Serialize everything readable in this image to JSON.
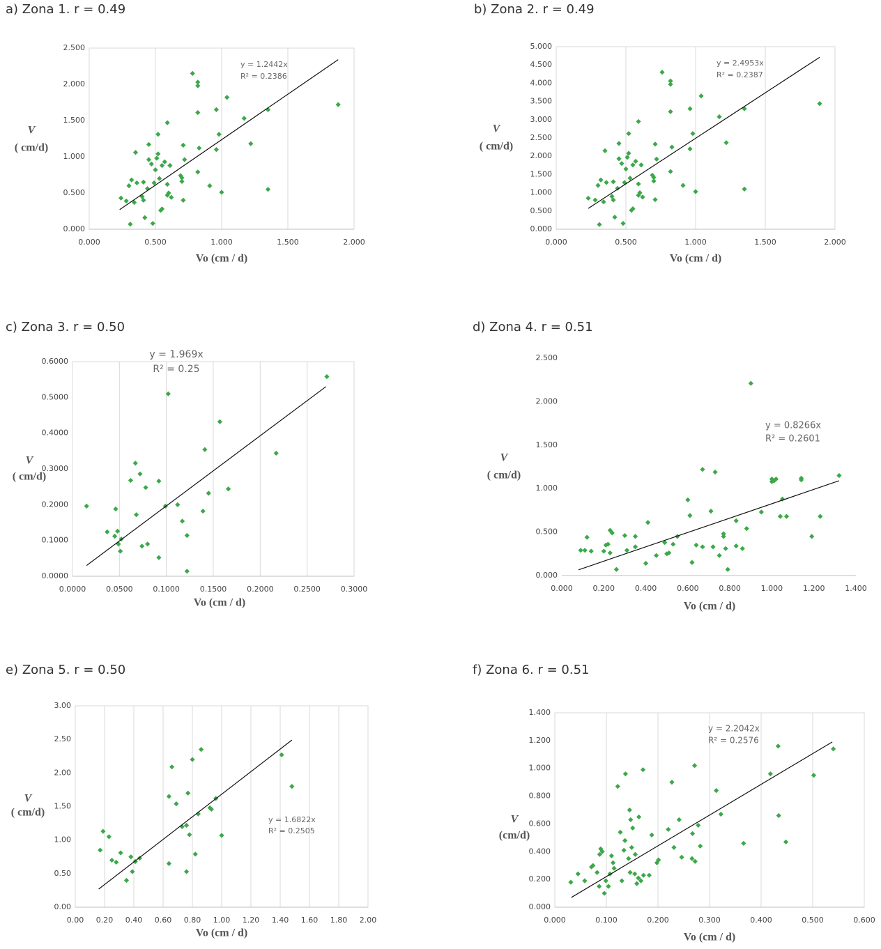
{
  "chart_data": [
    {
      "type": "scatter",
      "title": "a) Zona 1. r = 0.49",
      "x_label": "Vo (cm / d)",
      "y_label": [
        "V",
        "( cm/d)"
      ],
      "annotations": [
        "y = 1.2442x",
        "R² = 0.2386"
      ],
      "color": "#3ca84a",
      "grid": "x",
      "xlim": [
        0,
        2
      ],
      "ylim": [
        0,
        2.5
      ],
      "xticks": [
        {
          "value": 0,
          "label": "0.000"
        },
        {
          "value": 0.5,
          "label": "0.500"
        },
        {
          "value": 1,
          "label": "1.000"
        },
        {
          "value": 1.5,
          "label": "1.500"
        },
        {
          "value": 2,
          "label": "2.000"
        }
      ],
      "yticks": [
        {
          "value": 0,
          "label": "0.000"
        },
        {
          "value": 0.5,
          "label": "0.500"
        },
        {
          "value": 1,
          "label": "1.000"
        },
        {
          "value": 1.5,
          "label": "1.500"
        },
        {
          "value": 2,
          "label": "2.000"
        },
        {
          "value": 2.5,
          "label": "2.500"
        }
      ],
      "x": [
        0.24,
        0.28,
        0.3,
        0.31,
        0.32,
        0.34,
        0.35,
        0.36,
        0.4,
        0.41,
        0.41,
        0.42,
        0.44,
        0.45,
        0.45,
        0.47,
        0.48,
        0.49,
        0.5,
        0.51,
        0.52,
        0.52,
        0.53,
        0.54,
        0.55,
        0.55,
        0.57,
        0.59,
        0.59,
        0.59,
        0.6,
        0.61,
        0.62,
        0.69,
        0.7,
        0.7,
        0.71,
        0.71,
        0.72,
        0.78,
        0.82,
        0.82,
        0.82,
        0.82,
        0.83,
        0.91,
        0.96,
        0.96,
        0.98,
        1.0,
        1.04,
        1.17,
        1.22,
        1.35,
        1.35,
        1.88
      ],
      "values": [
        0.43,
        0.39,
        0.6,
        0.07,
        0.68,
        0.37,
        1.06,
        0.64,
        0.45,
        0.4,
        0.65,
        0.16,
        0.56,
        1.17,
        0.96,
        0.9,
        0.08,
        0.64,
        0.82,
        0.98,
        1.31,
        1.04,
        0.7,
        0.26,
        0.28,
        0.88,
        0.93,
        1.47,
        0.62,
        0.47,
        0.5,
        0.88,
        0.44,
        0.74,
        0.66,
        0.71,
        1.16,
        0.4,
        0.96,
        2.15,
        1.98,
        2.03,
        1.61,
        0.79,
        1.12,
        0.6,
        1.1,
        1.65,
        1.31,
        0.51,
        1.82,
        1.53,
        1.18,
        0.55,
        1.65,
        1.72
      ],
      "trendline": {
        "x": [
          0.23,
          1.88
        ],
        "values": [
          0.27,
          2.34
        ]
      }
    },
    {
      "type": "scatter",
      "title": "b) Zona 2. r = 0.49",
      "x_label": "Vo (cm / d)",
      "y_label": [
        "V",
        "( cm/d)"
      ],
      "annotations": [
        "y = 2.4953x",
        "R² = 0.2387"
      ],
      "color": "#3ca84a",
      "grid": "x",
      "xlim": [
        0,
        2
      ],
      "ylim": [
        0,
        5
      ],
      "xticks": [
        {
          "value": 0,
          "label": "0.000"
        },
        {
          "value": 0.5,
          "label": "0.500"
        },
        {
          "value": 1,
          "label": "1.000"
        },
        {
          "value": 1.5,
          "label": "1.500"
        },
        {
          "value": 2,
          "label": "2.000"
        }
      ],
      "yticks": [
        {
          "value": 0,
          "label": "0.000"
        },
        {
          "value": 0.5,
          "label": "0.500"
        },
        {
          "value": 1,
          "label": "1.000"
        },
        {
          "value": 1.5,
          "label": "1.500"
        },
        {
          "value": 2,
          "label": "2.000"
        },
        {
          "value": 2.5,
          "label": "2.500"
        },
        {
          "value": 3,
          "label": "3.000"
        },
        {
          "value": 3.5,
          "label": "3.500"
        },
        {
          "value": 4,
          "label": "4.000"
        },
        {
          "value": 4.5,
          "label": "4.500"
        },
        {
          "value": 5,
          "label": "5.000"
        }
      ],
      "x": [
        0.23,
        0.28,
        0.3,
        0.31,
        0.32,
        0.34,
        0.35,
        0.36,
        0.4,
        0.41,
        0.41,
        0.42,
        0.44,
        0.45,
        0.45,
        0.47,
        0.48,
        0.49,
        0.5,
        0.51,
        0.52,
        0.52,
        0.53,
        0.54,
        0.55,
        0.55,
        0.57,
        0.59,
        0.59,
        0.59,
        0.6,
        0.61,
        0.62,
        0.69,
        0.7,
        0.7,
        0.71,
        0.71,
        0.72,
        0.76,
        0.82,
        0.82,
        0.82,
        0.82,
        0.83,
        0.91,
        0.96,
        0.96,
        0.98,
        1.0,
        1.04,
        1.17,
        1.22,
        1.35,
        1.35,
        1.89
      ],
      "values": [
        0.85,
        0.8,
        1.2,
        0.13,
        1.35,
        0.75,
        2.15,
        1.28,
        0.9,
        0.8,
        1.3,
        0.33,
        1.12,
        2.35,
        1.93,
        1.8,
        0.16,
        1.28,
        1.65,
        1.97,
        2.62,
        2.08,
        1.4,
        0.52,
        0.56,
        1.76,
        1.86,
        2.95,
        1.24,
        0.93,
        1.0,
        1.76,
        0.88,
        1.48,
        1.32,
        1.42,
        2.33,
        0.81,
        1.92,
        4.3,
        3.97,
        4.06,
        3.22,
        1.58,
        2.25,
        1.2,
        2.2,
        3.3,
        2.62,
        1.03,
        3.65,
        3.08,
        2.37,
        1.1,
        3.3,
        3.44
      ],
      "trendline": {
        "x": [
          0.23,
          1.89
        ],
        "values": [
          0.57,
          4.71
        ]
      }
    },
    {
      "type": "scatter",
      "title": "c) Zona 3. r = 0.50",
      "x_label": "Vo (cm / d)",
      "y_label": [
        "V",
        "( cm/d)"
      ],
      "annotations": [
        "y = 1.969x",
        "R² = 0.25"
      ],
      "color": "#3ca84a",
      "grid": "x",
      "xlim": [
        0,
        0.3
      ],
      "ylim": [
        0,
        0.6
      ],
      "xticks": [
        {
          "value": 0,
          "label": "0.0000"
        },
        {
          "value": 0.05,
          "label": "0.0500"
        },
        {
          "value": 0.1,
          "label": "0.1000"
        },
        {
          "value": 0.15,
          "label": "0.1500"
        },
        {
          "value": 0.2,
          "label": "0.2000"
        },
        {
          "value": 0.25,
          "label": "0.2500"
        },
        {
          "value": 0.3,
          "label": "0.3000"
        }
      ],
      "yticks": [
        {
          "value": 0,
          "label": "0.0000"
        },
        {
          "value": 0.1,
          "label": "0.1000"
        },
        {
          "value": 0.2,
          "label": "0.2000"
        },
        {
          "value": 0.3,
          "label": "0.3000"
        },
        {
          "value": 0.4,
          "label": "0.4000"
        },
        {
          "value": 0.5,
          "label": "0.5000"
        },
        {
          "value": 0.6,
          "label": "0.6000"
        }
      ],
      "x": [
        0.015,
        0.037,
        0.045,
        0.046,
        0.048,
        0.049,
        0.051,
        0.052,
        0.062,
        0.067,
        0.068,
        0.072,
        0.074,
        0.078,
        0.08,
        0.092,
        0.092,
        0.099,
        0.102,
        0.112,
        0.117,
        0.122,
        0.122,
        0.139,
        0.141,
        0.145,
        0.157,
        0.166,
        0.217,
        0.271
      ],
      "values": [
        0.196,
        0.124,
        0.112,
        0.188,
        0.126,
        0.09,
        0.07,
        0.104,
        0.268,
        0.316,
        0.172,
        0.286,
        0.084,
        0.248,
        0.09,
        0.266,
        0.052,
        0.196,
        0.51,
        0.2,
        0.154,
        0.114,
        0.014,
        0.182,
        0.354,
        0.232,
        0.432,
        0.244,
        0.344,
        0.558
      ],
      "trendline": {
        "x": [
          0.015,
          0.27
        ],
        "values": [
          0.03,
          0.53
        ]
      }
    },
    {
      "type": "scatter",
      "title": "d) Zona 4. r = 0.51",
      "x_label": "Vo (cm / d)",
      "y_label": [
        "V",
        "( cm/d)"
      ],
      "annotations": [
        "y = 0.8266x",
        "R² = 0.2601"
      ],
      "color": "#3ca84a",
      "grid": false,
      "xlim": [
        0,
        1.4
      ],
      "ylim": [
        0,
        2.5
      ],
      "xticks": [
        {
          "value": 0,
          "label": "0.000"
        },
        {
          "value": 0.2,
          "label": "0.200"
        },
        {
          "value": 0.4,
          "label": "0.400"
        },
        {
          "value": 0.6,
          "label": "0.600"
        },
        {
          "value": 0.8,
          "label": "0.800"
        },
        {
          "value": 1,
          "label": "1.000"
        },
        {
          "value": 1.2,
          "label": "1.200"
        },
        {
          "value": 1.4,
          "label": "1.400"
        }
      ],
      "yticks": [
        {
          "value": 0,
          "label": "0.000"
        },
        {
          "value": 0.5,
          "label": "0.500"
        },
        {
          "value": 1,
          "label": "1.000"
        },
        {
          "value": 1.5,
          "label": "1.500"
        },
        {
          "value": 2,
          "label": "2.000"
        },
        {
          "value": 2.5,
          "label": "2.500"
        }
      ],
      "x": [
        0.09,
        0.11,
        0.12,
        0.14,
        0.2,
        0.21,
        0.22,
        0.23,
        0.23,
        0.24,
        0.26,
        0.3,
        0.31,
        0.35,
        0.35,
        0.4,
        0.41,
        0.45,
        0.49,
        0.5,
        0.51,
        0.53,
        0.55,
        0.6,
        0.61,
        0.62,
        0.64,
        0.67,
        0.67,
        0.71,
        0.72,
        0.73,
        0.75,
        0.77,
        0.77,
        0.78,
        0.79,
        0.83,
        0.83,
        0.86,
        0.88,
        0.9,
        0.95,
        1.0,
        1.0,
        1.01,
        1.02,
        1.04,
        1.05,
        1.07,
        1.14,
        1.14,
        1.19,
        1.23,
        1.32
      ],
      "values": [
        0.29,
        0.29,
        0.44,
        0.28,
        0.28,
        0.35,
        0.36,
        0.52,
        0.26,
        0.49,
        0.07,
        0.46,
        0.29,
        0.45,
        0.33,
        0.14,
        0.61,
        0.23,
        0.38,
        0.25,
        0.26,
        0.36,
        0.45,
        0.87,
        0.69,
        0.15,
        0.35,
        1.22,
        0.33,
        0.74,
        0.33,
        1.19,
        0.23,
        0.45,
        0.48,
        0.31,
        0.07,
        0.63,
        0.34,
        0.31,
        0.54,
        2.21,
        0.73,
        1.11,
        1.08,
        1.09,
        1.11,
        0.68,
        0.88,
        0.68,
        1.12,
        1.1,
        0.45,
        0.68,
        1.15
      ],
      "trendline": {
        "x": [
          0.08,
          1.32
        ],
        "values": [
          0.066,
          1.09
        ]
      }
    },
    {
      "type": "scatter",
      "title": "e) Zona 5. r = 0.50",
      "x_label": "Vo (cm / d)",
      "y_label": [
        "V",
        "( cm/d)"
      ],
      "annotations": [
        "y = 1.6822x",
        "R² = 0.2505"
      ],
      "color": "#3ca84a",
      "grid": "x",
      "xlim": [
        0,
        2
      ],
      "ylim": [
        0,
        3
      ],
      "xticks": [
        {
          "value": 0,
          "label": "0.00"
        },
        {
          "value": 0.2,
          "label": "0.20"
        },
        {
          "value": 0.4,
          "label": "0.40"
        },
        {
          "value": 0.6,
          "label": "0.60"
        },
        {
          "value": 0.8,
          "label": "0.80"
        },
        {
          "value": 1,
          "label": "1.00"
        },
        {
          "value": 1.2,
          "label": "1.20"
        },
        {
          "value": 1.4,
          "label": "1.40"
        },
        {
          "value": 1.6,
          "label": "1.60"
        },
        {
          "value": 1.8,
          "label": "1.80"
        },
        {
          "value": 2,
          "label": "2.00"
        }
      ],
      "yticks": [
        {
          "value": 0,
          "label": "0.00"
        },
        {
          "value": 0.5,
          "label": "0.50"
        },
        {
          "value": 1,
          "label": "1.00"
        },
        {
          "value": 1.5,
          "label": "1.50"
        },
        {
          "value": 2,
          "label": "2.00"
        },
        {
          "value": 2.5,
          "label": "2.50"
        },
        {
          "value": 3,
          "label": "3.00"
        }
      ],
      "x": [
        0.17,
        0.19,
        0.23,
        0.25,
        0.28,
        0.31,
        0.35,
        0.38,
        0.39,
        0.41,
        0.44,
        0.64,
        0.64,
        0.66,
        0.69,
        0.73,
        0.76,
        0.76,
        0.77,
        0.78,
        0.8,
        0.82,
        0.84,
        0.86,
        0.92,
        0.93,
        0.96,
        1.0,
        1.41,
        1.48
      ],
      "values": [
        0.85,
        1.13,
        1.05,
        0.7,
        0.67,
        0.81,
        0.4,
        0.75,
        0.53,
        0.68,
        0.73,
        0.65,
        1.65,
        2.09,
        1.54,
        1.2,
        1.22,
        0.53,
        1.7,
        1.08,
        2.2,
        0.79,
        1.39,
        2.35,
        1.48,
        1.46,
        1.62,
        1.07,
        2.27,
        1.8
      ],
      "trendline": {
        "x": [
          0.16,
          1.48
        ],
        "values": [
          0.27,
          2.49
        ]
      }
    },
    {
      "type": "scatter",
      "title": "f) Zona 6. r = 0.51",
      "x_label": "Vo (cm / d)",
      "y_label": [
        "V",
        "(cm/d)"
      ],
      "annotations": [
        "y = 2.2042x",
        "R² = 0.2576"
      ],
      "color": "#3ca84a",
      "grid": "x",
      "xlim": [
        0,
        0.6
      ],
      "ylim": [
        0,
        1.4
      ],
      "xticks": [
        {
          "value": 0,
          "label": "0.000"
        },
        {
          "value": 0.1,
          "label": "0.100"
        },
        {
          "value": 0.2,
          "label": "0.200"
        },
        {
          "value": 0.3,
          "label": "0.300"
        },
        {
          "value": 0.4,
          "label": "0.400"
        },
        {
          "value": 0.5,
          "label": "0.500"
        },
        {
          "value": 0.6,
          "label": "0.600"
        }
      ],
      "yticks": [
        {
          "value": 0,
          "label": "0.000"
        },
        {
          "value": 0.2,
          "label": "0.200"
        },
        {
          "value": 0.4,
          "label": "0.400"
        },
        {
          "value": 0.6,
          "label": "0.600"
        },
        {
          "value": 0.8,
          "label": "0.800"
        },
        {
          "value": 1,
          "label": "1.000"
        },
        {
          "value": 1.2,
          "label": "1.200"
        },
        {
          "value": 1.4,
          "label": "1.400"
        }
      ],
      "x": [
        0.031,
        0.045,
        0.058,
        0.071,
        0.074,
        0.082,
        0.086,
        0.087,
        0.089,
        0.092,
        0.096,
        0.099,
        0.104,
        0.107,
        0.11,
        0.113,
        0.115,
        0.122,
        0.127,
        0.13,
        0.134,
        0.136,
        0.137,
        0.143,
        0.145,
        0.146,
        0.147,
        0.149,
        0.151,
        0.155,
        0.156,
        0.159,
        0.162,
        0.163,
        0.167,
        0.171,
        0.172,
        0.183,
        0.188,
        0.198,
        0.201,
        0.22,
        0.227,
        0.231,
        0.241,
        0.246,
        0.266,
        0.267,
        0.271,
        0.272,
        0.278,
        0.282,
        0.313,
        0.322,
        0.366,
        0.418,
        0.433,
        0.434,
        0.448,
        0.502,
        0.54
      ],
      "values": [
        0.18,
        0.24,
        0.19,
        0.29,
        0.3,
        0.25,
        0.15,
        0.38,
        0.42,
        0.4,
        0.1,
        0.19,
        0.15,
        0.24,
        0.37,
        0.32,
        0.28,
        0.87,
        0.54,
        0.19,
        0.41,
        0.48,
        0.96,
        0.35,
        0.7,
        0.25,
        0.63,
        0.43,
        0.57,
        0.24,
        0.38,
        0.17,
        0.21,
        0.65,
        0.19,
        0.99,
        0.23,
        0.23,
        0.52,
        0.32,
        0.34,
        0.56,
        0.9,
        0.43,
        0.63,
        0.36,
        0.35,
        0.53,
        1.02,
        0.33,
        0.59,
        0.44,
        0.84,
        0.67,
        0.46,
        0.96,
        1.16,
        0.66,
        0.47,
        0.95,
        1.14
      ],
      "trendline": {
        "x": [
          0.032,
          0.538
        ],
        "values": [
          0.07,
          1.19
        ]
      }
    }
  ]
}
